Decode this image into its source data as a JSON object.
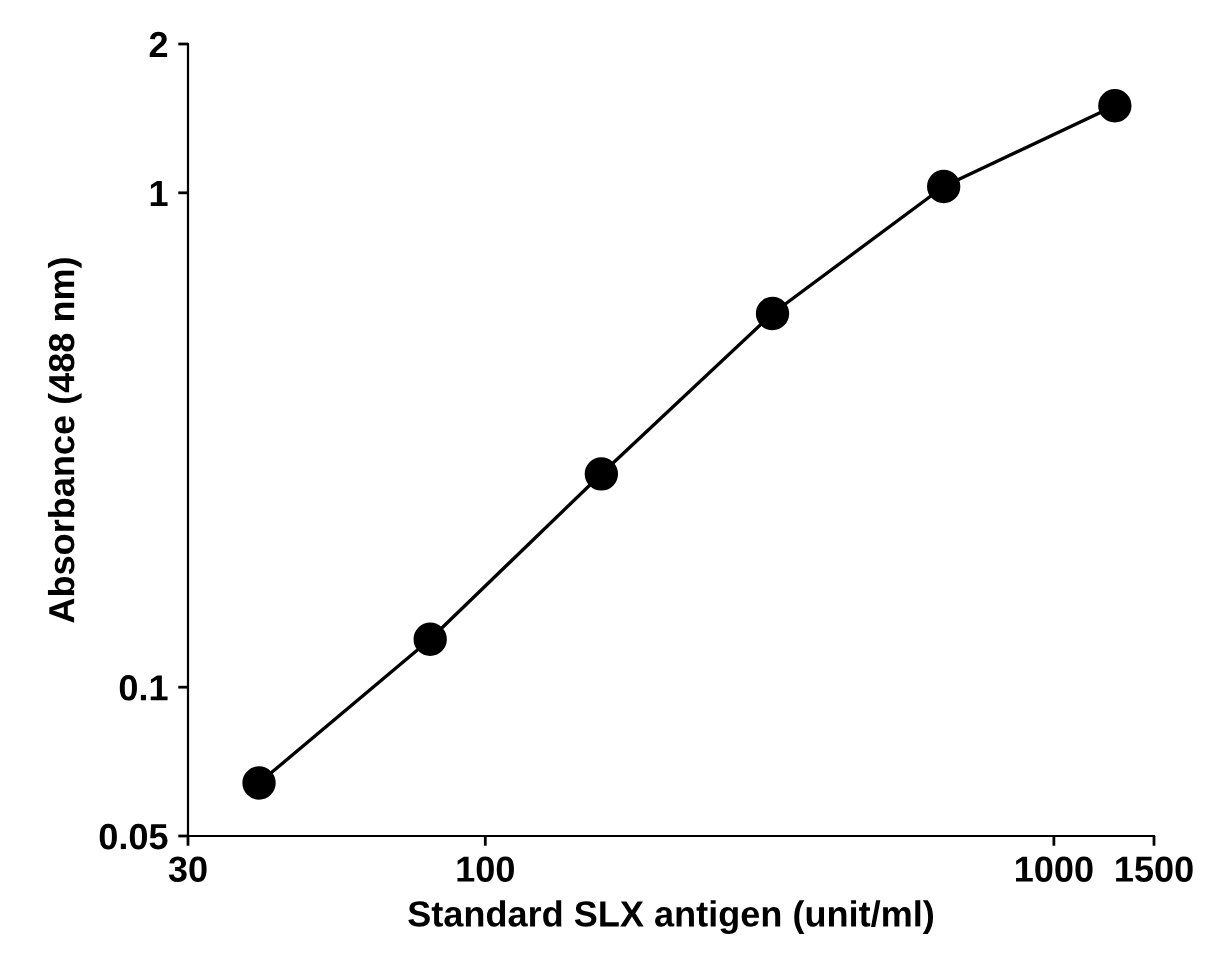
{
  "chart_data": {
    "type": "line",
    "xlabel": "Standard SLX antigen (unit/ml)",
    "ylabel": "Absorbance (488 nm)",
    "log": "xy",
    "x": [
      40,
      80,
      160,
      320,
      640,
      1280
    ],
    "series": [
      {
        "color": "#000000",
        "values": [
          0.064,
          0.125,
          0.27,
          0.57,
          1.03,
          1.5
        ]
      }
    ],
    "xlim": [
      30,
      1500
    ],
    "xticks": [
      30,
      100,
      1000,
      1500
    ],
    "ylim": [
      0.05,
      2
    ],
    "yticks": [
      0.05,
      0.1,
      1,
      2
    ],
    "marker": "circle",
    "line_style": "solid",
    "grid": false,
    "legend": false
  }
}
